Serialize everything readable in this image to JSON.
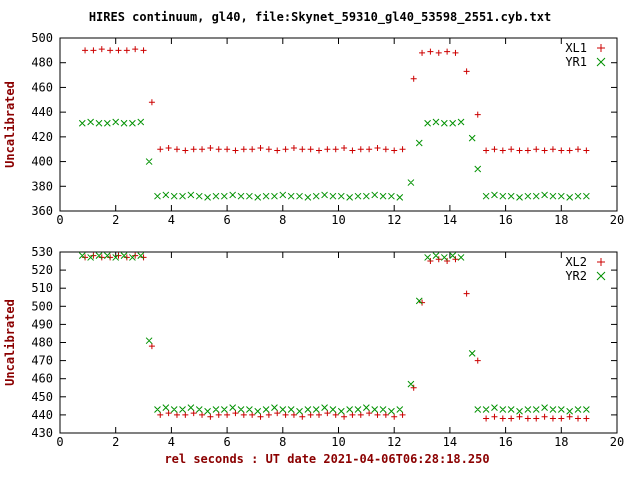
{
  "title": "HIRES continuum, gl40, file:Skynet_59310_gl40_53598_2551.cyb.txt",
  "xlabel": "rel seconds : UT date 2021-04-06T06:28:18.250",
  "colors": {
    "series_red": "#cc0000",
    "series_green": "#009100",
    "axis_label": "#8b0000",
    "axis_line": "#000000",
    "background": "#ffffff"
  },
  "chart_data": [
    {
      "type": "scatter",
      "ylabel": "Uncalibrated",
      "xlim": [
        0,
        20
      ],
      "ylim": [
        360,
        500
      ],
      "xticks": [
        0,
        2,
        4,
        6,
        8,
        10,
        12,
        14,
        16,
        18,
        20
      ],
      "yticks": [
        360,
        380,
        400,
        420,
        440,
        460,
        480,
        500
      ],
      "legend_position": "top-right",
      "grid": false,
      "series": [
        {
          "name": "XL1",
          "marker": "plus",
          "color": "#cc0000",
          "x": [
            0.9,
            1.2,
            1.5,
            1.8,
            2.1,
            2.4,
            2.7,
            3.0,
            3.3,
            3.6,
            3.9,
            4.2,
            4.5,
            4.8,
            5.1,
            5.4,
            5.7,
            6.0,
            6.3,
            6.6,
            6.9,
            7.2,
            7.5,
            7.8,
            8.1,
            8.4,
            8.7,
            9.0,
            9.3,
            9.6,
            9.9,
            10.2,
            10.5,
            10.8,
            11.1,
            11.4,
            11.7,
            12.0,
            12.3,
            12.7,
            13.0,
            13.3,
            13.6,
            13.9,
            14.2,
            14.6,
            15.0,
            15.3,
            15.6,
            15.9,
            16.2,
            16.5,
            16.8,
            17.1,
            17.4,
            17.7,
            18.0,
            18.3,
            18.6,
            18.9
          ],
          "y": [
            490,
            490,
            491,
            490,
            490,
            490,
            491,
            490,
            448,
            410,
            411,
            410,
            409,
            410,
            410,
            411,
            410,
            410,
            409,
            410,
            410,
            411,
            410,
            409,
            410,
            411,
            410,
            410,
            409,
            410,
            410,
            411,
            409,
            410,
            410,
            411,
            410,
            409,
            410,
            467,
            488,
            489,
            488,
            489,
            488,
            473,
            438,
            409,
            410,
            409,
            410,
            409,
            409,
            410,
            409,
            410,
            409,
            409,
            410,
            409
          ]
        },
        {
          "name": "YR1",
          "marker": "cross",
          "color": "#009100",
          "x": [
            0.8,
            1.1,
            1.4,
            1.7,
            2.0,
            2.3,
            2.6,
            2.9,
            3.2,
            3.5,
            3.8,
            4.1,
            4.4,
            4.7,
            5.0,
            5.3,
            5.6,
            5.9,
            6.2,
            6.5,
            6.8,
            7.1,
            7.4,
            7.7,
            8.0,
            8.3,
            8.6,
            8.9,
            9.2,
            9.5,
            9.8,
            10.1,
            10.4,
            10.7,
            11.0,
            11.3,
            11.6,
            11.9,
            12.2,
            12.6,
            12.9,
            13.2,
            13.5,
            13.8,
            14.1,
            14.4,
            14.8,
            15.0,
            15.3,
            15.6,
            15.9,
            16.2,
            16.5,
            16.8,
            17.1,
            17.4,
            17.7,
            18.0,
            18.3,
            18.6,
            18.9
          ],
          "y": [
            431,
            432,
            431,
            431,
            432,
            431,
            431,
            432,
            400,
            372,
            373,
            372,
            372,
            373,
            372,
            371,
            372,
            372,
            373,
            372,
            372,
            371,
            372,
            372,
            373,
            372,
            372,
            371,
            372,
            373,
            372,
            372,
            371,
            372,
            372,
            373,
            372,
            372,
            371,
            383,
            415,
            431,
            432,
            431,
            431,
            432,
            419,
            394,
            372,
            373,
            372,
            372,
            371,
            372,
            372,
            373,
            372,
            372,
            371,
            372,
            372
          ]
        }
      ]
    },
    {
      "type": "scatter",
      "ylabel": "Uncalibrated",
      "xlim": [
        0,
        20
      ],
      "ylim": [
        430,
        530
      ],
      "xticks": [
        0,
        2,
        4,
        6,
        8,
        10,
        12,
        14,
        16,
        18,
        20
      ],
      "yticks": [
        430,
        440,
        450,
        460,
        470,
        480,
        490,
        500,
        510,
        520,
        530
      ],
      "legend_position": "top-right",
      "grid": false,
      "series": [
        {
          "name": "XL2",
          "marker": "plus",
          "color": "#cc0000",
          "x": [
            0.9,
            1.2,
            1.5,
            1.8,
            2.1,
            2.4,
            2.7,
            3.0,
            3.3,
            3.6,
            3.9,
            4.2,
            4.5,
            4.8,
            5.1,
            5.4,
            5.7,
            6.0,
            6.3,
            6.6,
            6.9,
            7.2,
            7.5,
            7.8,
            8.1,
            8.4,
            8.7,
            9.0,
            9.3,
            9.6,
            9.9,
            10.2,
            10.5,
            10.8,
            11.1,
            11.4,
            11.7,
            12.0,
            12.3,
            12.7,
            13.0,
            13.3,
            13.6,
            13.9,
            14.2,
            14.6,
            15.0,
            15.3,
            15.6,
            15.9,
            16.2,
            16.5,
            16.8,
            17.1,
            17.4,
            17.7,
            18.0,
            18.3,
            18.6,
            18.9
          ],
          "y": [
            527,
            528,
            527,
            527,
            528,
            527,
            528,
            527,
            478,
            440,
            441,
            440,
            440,
            441,
            440,
            439,
            440,
            440,
            441,
            440,
            440,
            439,
            440,
            441,
            440,
            440,
            439,
            440,
            440,
            441,
            440,
            439,
            440,
            440,
            441,
            440,
            440,
            439,
            440,
            455,
            502,
            525,
            526,
            525,
            526,
            507,
            470,
            438,
            439,
            438,
            438,
            439,
            438,
            438,
            439,
            438,
            438,
            439,
            438,
            438
          ]
        },
        {
          "name": "YR2",
          "marker": "cross",
          "color": "#009100",
          "x": [
            0.8,
            1.1,
            1.4,
            1.7,
            2.0,
            2.3,
            2.6,
            2.9,
            3.2,
            3.5,
            3.8,
            4.1,
            4.4,
            4.7,
            5.0,
            5.3,
            5.6,
            5.9,
            6.2,
            6.5,
            6.8,
            7.1,
            7.4,
            7.7,
            8.0,
            8.3,
            8.6,
            8.9,
            9.2,
            9.5,
            9.8,
            10.1,
            10.4,
            10.7,
            11.0,
            11.3,
            11.6,
            11.9,
            12.2,
            12.6,
            12.9,
            13.2,
            13.5,
            13.8,
            14.1,
            14.4,
            14.8,
            15.0,
            15.3,
            15.6,
            15.9,
            16.2,
            16.5,
            16.8,
            17.1,
            17.4,
            17.7,
            18.0,
            18.3,
            18.6,
            18.9
          ],
          "y": [
            528,
            527,
            528,
            528,
            527,
            528,
            527,
            528,
            481,
            443,
            444,
            443,
            443,
            444,
            443,
            442,
            443,
            443,
            444,
            443,
            443,
            442,
            443,
            444,
            443,
            443,
            442,
            443,
            443,
            444,
            443,
            442,
            443,
            443,
            444,
            443,
            443,
            442,
            443,
            457,
            503,
            527,
            528,
            527,
            528,
            527,
            474,
            443,
            443,
            444,
            443,
            443,
            442,
            443,
            443,
            444,
            443,
            443,
            442,
            443,
            443
          ]
        }
      ]
    }
  ]
}
